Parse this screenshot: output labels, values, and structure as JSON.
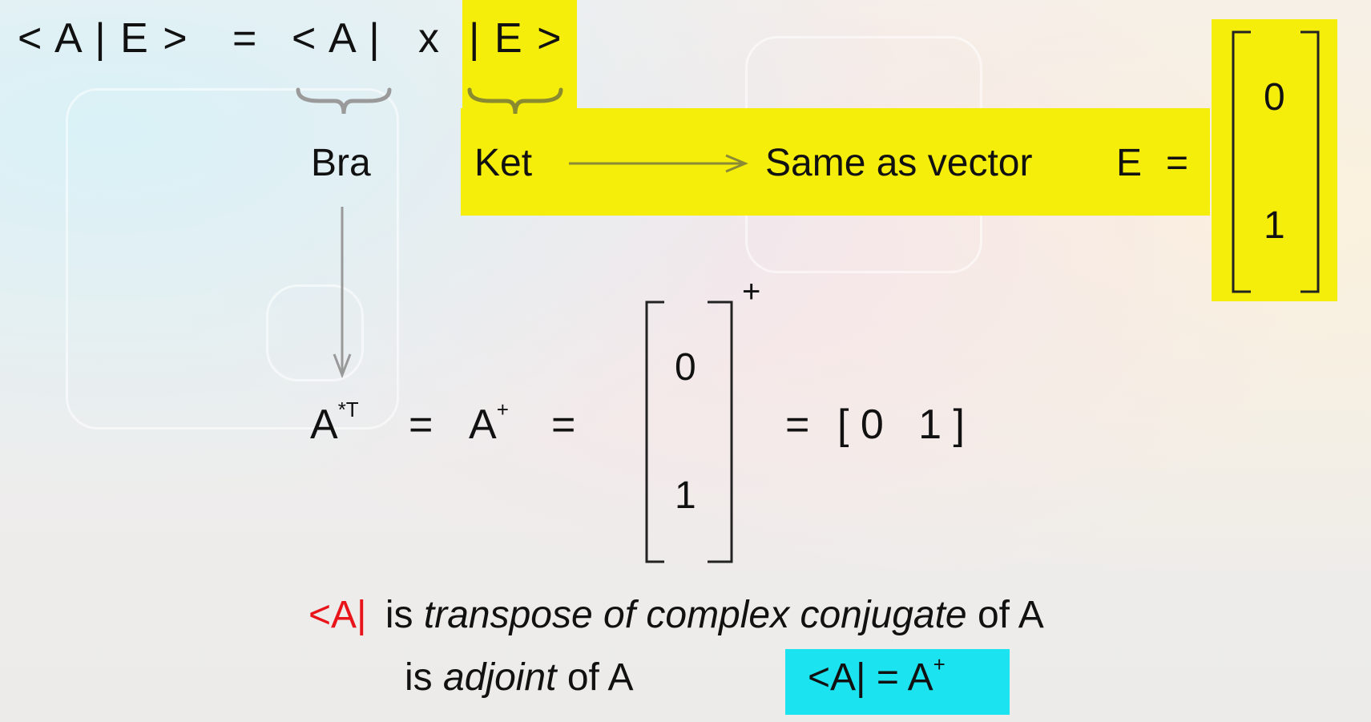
{
  "equation": {
    "bra_ket": "< A | E >",
    "equals": "=",
    "bra": "< A |",
    "times": "x",
    "ket": "| E >"
  },
  "labels": {
    "bra": "Bra",
    "ket": "Ket",
    "same_as": "Same as vector",
    "vector_name": "E",
    "equals": "="
  },
  "vector_E": [
    "0",
    "1"
  ],
  "adjoint_line": {
    "a_star_t": "A",
    "a_star_t_sup": "*T",
    "eq1": "=",
    "a_plus": "A",
    "a_plus_sup": "+",
    "eq2": "=",
    "matrix": [
      "0",
      "1"
    ],
    "matrix_sup": "+",
    "eq3": "=",
    "result": "[ 0   1 ]"
  },
  "description": {
    "bra_symbol": "<A|",
    "line1_is": "is",
    "line1_italic": "transpose of complex conjugate",
    "line1_tail": "of A",
    "line2_is": "is",
    "line2_italic": "adjoint",
    "line2_tail": "of A",
    "identity": "<A| = A",
    "identity_sup": "+"
  },
  "colors": {
    "highlight_yellow": "#f5ee0a",
    "highlight_cyan": "#1be4f0",
    "bra_red": "#e8141a",
    "arrow_gray": "#999999"
  }
}
